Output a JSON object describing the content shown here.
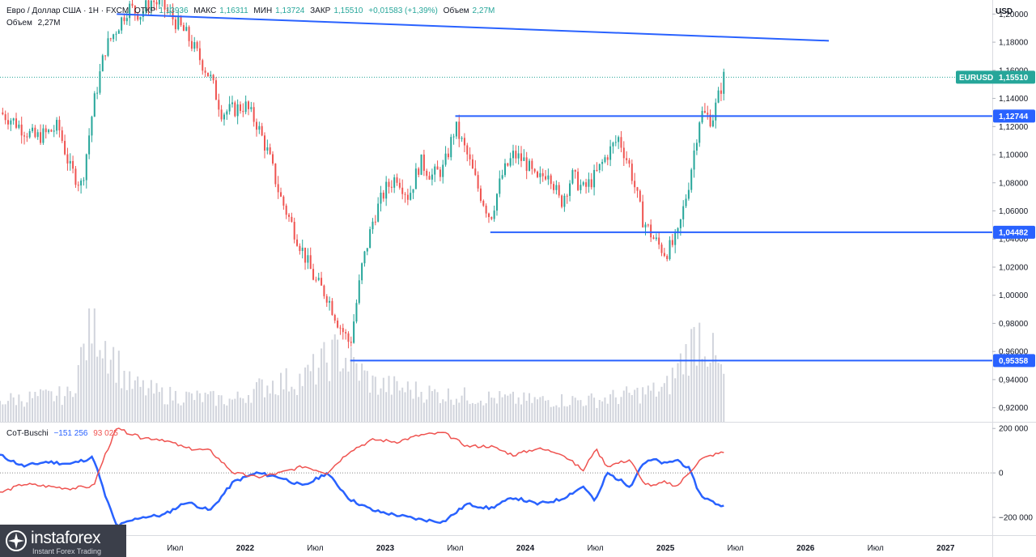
{
  "header": {
    "symbol_title": "Евро / Доллар США · 1Н · FXCM",
    "open_label": "ОТКР",
    "open_value": "1,13936",
    "high_label": "МАКС",
    "high_value": "1,16311",
    "low_label": "МИН",
    "low_value": "1,13724",
    "close_label": "ЗАКР",
    "close_value": "1,15510",
    "change_value": "+0,01583 (+1,39%)",
    "volume_label": "Объем",
    "volume_value": "2,27M"
  },
  "volume_legend": {
    "label": "Объем",
    "value": "2,27M"
  },
  "cot_legend": {
    "title": "CoT-Buschi",
    "value_blue": "−151 256",
    "value_red": "93 025"
  },
  "currency_button": "USD",
  "price_badge": {
    "symbol": "EURUSD",
    "value": "1,15510"
  },
  "levels": [
    {
      "value": 1.12744,
      "label": "1,12744"
    },
    {
      "value": 1.04482,
      "label": "1,04482"
    },
    {
      "value": 0.95358,
      "label": "0,95358"
    }
  ],
  "logo": {
    "brand": "instaforex",
    "tagline": "Instant Forex Trading"
  },
  "colors": {
    "up": "#26a69a",
    "down": "#ef5350",
    "level": "#2962ff",
    "cot_blue": "#2962ff",
    "cot_red": "#ef5350",
    "volume": "#d1d4dc"
  },
  "chart_data": {
    "type": "candlestick",
    "symbol": "EURUSD",
    "timeframe": "1Н",
    "x_range": [
      "2020-04",
      "2027-05"
    ],
    "price_axis": {
      "min": 0.91,
      "max": 1.21,
      "ticks": [
        1.2,
        1.18,
        1.16,
        1.14,
        1.12,
        1.1,
        1.08,
        1.06,
        1.04,
        1.02,
        1.0,
        0.98,
        0.96,
        0.94,
        0.92
      ],
      "tick_labels": [
        "1,20000",
        "1,18000",
        "1,16000",
        "1,14000",
        "1,12000",
        "1,10000",
        "1,08000",
        "1,06000",
        "1,04000",
        "1,02000",
        "1,00000",
        "0,98000",
        "0,96000",
        "0,94000",
        "0,92000"
      ]
    },
    "time_axis": {
      "ticks": [
        {
          "t": "2020-07",
          "label": "Июл"
        },
        {
          "t": "2021-01",
          "label": "2021"
        },
        {
          "t": "2021-07",
          "label": "Июл"
        },
        {
          "t": "2022-01",
          "label": "2022"
        },
        {
          "t": "2022-07",
          "label": "Июл"
        },
        {
          "t": "2023-01",
          "label": "2023"
        },
        {
          "t": "2023-07",
          "label": "Июл"
        },
        {
          "t": "2024-01",
          "label": "2024"
        },
        {
          "t": "2024-07",
          "label": "Июл"
        },
        {
          "t": "2025-01",
          "label": "2025"
        },
        {
          "t": "2025-07",
          "label": "Июл"
        },
        {
          "t": "2026-01",
          "label": "2026"
        },
        {
          "t": "2026-07",
          "label": "Июл"
        },
        {
          "t": "2027-01",
          "label": "2027"
        }
      ]
    },
    "close_path": [
      [
        "2020-04",
        1.13
      ],
      [
        "2020-05",
        1.125
      ],
      [
        "2020-06",
        1.118
      ],
      [
        "2020-07",
        1.112
      ],
      [
        "2020-08",
        1.115
      ],
      [
        "2020-09",
        1.12
      ],
      [
        "2020-10",
        1.09
      ],
      [
        "2020-11",
        1.078
      ],
      [
        "2020-12",
        1.135
      ],
      [
        "2021-01",
        1.175
      ],
      [
        "2021-02",
        1.19
      ],
      [
        "2021-03",
        1.205
      ],
      [
        "2021-04",
        1.2
      ],
      [
        "2021-05",
        1.21
      ],
      [
        "2021-06",
        1.205
      ],
      [
        "2021-07",
        1.195
      ],
      [
        "2021-08",
        1.185
      ],
      [
        "2021-09",
        1.17
      ],
      [
        "2021-10",
        1.155
      ],
      [
        "2021-11",
        1.13
      ],
      [
        "2021-12",
        1.132
      ],
      [
        "2022-01",
        1.135
      ],
      [
        "2022-02",
        1.122
      ],
      [
        "2022-03",
        1.1
      ],
      [
        "2022-04",
        1.07
      ],
      [
        "2022-05",
        1.05
      ],
      [
        "2022-06",
        1.03
      ],
      [
        "2022-07",
        1.01
      ],
      [
        "2022-08",
        1.0
      ],
      [
        "2022-09",
        0.98
      ],
      [
        "2022-10",
        0.965
      ],
      [
        "2022-11",
        1.02
      ],
      [
        "2022-12",
        1.055
      ],
      [
        "2023-01",
        1.075
      ],
      [
        "2023-02",
        1.085
      ],
      [
        "2023-03",
        1.07
      ],
      [
        "2023-04",
        1.095
      ],
      [
        "2023-05",
        1.085
      ],
      [
        "2023-06",
        1.09
      ],
      [
        "2023-07",
        1.12
      ],
      [
        "2023-08",
        1.1
      ],
      [
        "2023-09",
        1.075
      ],
      [
        "2023-10",
        1.055
      ],
      [
        "2023-11",
        1.085
      ],
      [
        "2023-12",
        1.1
      ],
      [
        "2024-01",
        1.095
      ],
      [
        "2024-02",
        1.08
      ],
      [
        "2024-03",
        1.09
      ],
      [
        "2024-04",
        1.065
      ],
      [
        "2024-05",
        1.085
      ],
      [
        "2024-06",
        1.075
      ],
      [
        "2024-07",
        1.085
      ],
      [
        "2024-08",
        1.1
      ],
      [
        "2024-09",
        1.112
      ],
      [
        "2024-10",
        1.09
      ],
      [
        "2024-11",
        1.055
      ],
      [
        "2024-12",
        1.04
      ],
      [
        "2025-01",
        1.03
      ],
      [
        "2025-02",
        1.04
      ],
      [
        "2025-03",
        1.08
      ],
      [
        "2025-04",
        1.13
      ],
      [
        "2025-05",
        1.125
      ],
      [
        "2025-06",
        1.155
      ]
    ],
    "volume_path": [
      [
        "2020-04",
        0.2
      ],
      [
        "2020-10",
        0.25
      ],
      [
        "2020-12",
        0.95
      ],
      [
        "2021-03",
        0.35
      ],
      [
        "2021-06",
        0.25
      ],
      [
        "2021-12",
        0.2
      ],
      [
        "2022-03",
        0.35
      ],
      [
        "2022-06",
        0.4
      ],
      [
        "2022-09",
        0.65
      ],
      [
        "2022-12",
        0.35
      ],
      [
        "2023-06",
        0.25
      ],
      [
        "2024-01",
        0.2
      ],
      [
        "2024-07",
        0.2
      ],
      [
        "2025-01",
        0.3
      ],
      [
        "2025-04",
        0.85
      ],
      [
        "2025-06",
        0.4
      ]
    ],
    "trendline": {
      "from": [
        "2021-02",
        1.2
      ],
      "to": [
        "2026-03",
        1.181
      ]
    },
    "last_price": 1.1551,
    "cot": {
      "axis": {
        "ticks": [
          200000,
          0,
          -200000
        ],
        "tick_labels": [
          "200 000",
          "0",
          "−200 000"
        ],
        "min": -280000,
        "max": 230000
      },
      "series": [
        {
          "name": "",
          "color": "#2962ff",
          "points": [
            [
              "2020-04",
              80000
            ],
            [
              "2020-06",
              30000
            ],
            [
              "2020-08",
              50000
            ],
            [
              "2020-10",
              40000
            ],
            [
              "2020-12",
              70000
            ],
            [
              "2021-01",
              -100000
            ],
            [
              "2021-02",
              -240000
            ],
            [
              "2021-04",
              -200000
            ],
            [
              "2021-06",
              -190000
            ],
            [
              "2021-08",
              -130000
            ],
            [
              "2021-10",
              -170000
            ],
            [
              "2021-12",
              -40000
            ],
            [
              "2022-02",
              0
            ],
            [
              "2022-04",
              -20000
            ],
            [
              "2022-06",
              -60000
            ],
            [
              "2022-08",
              0
            ],
            [
              "2022-10",
              -120000
            ],
            [
              "2022-12",
              -170000
            ],
            [
              "2023-02",
              -190000
            ],
            [
              "2023-04",
              -210000
            ],
            [
              "2023-06",
              -220000
            ],
            [
              "2023-08",
              -140000
            ],
            [
              "2023-10",
              -160000
            ],
            [
              "2023-12",
              -110000
            ],
            [
              "2024-02",
              -140000
            ],
            [
              "2024-04",
              -120000
            ],
            [
              "2024-06",
              -60000
            ],
            [
              "2024-07",
              -130000
            ],
            [
              "2024-08",
              0
            ],
            [
              "2024-10",
              -60000
            ],
            [
              "2024-11",
              40000
            ],
            [
              "2024-12",
              60000
            ],
            [
              "2025-01",
              40000
            ],
            [
              "2025-02",
              60000
            ],
            [
              "2025-03",
              20000
            ],
            [
              "2025-04",
              -100000
            ],
            [
              "2025-05",
              -130000
            ],
            [
              "2025-06",
              -151256
            ]
          ]
        },
        {
          "name": "",
          "color": "#ef5350",
          "points": [
            [
              "2020-04",
              -90000
            ],
            [
              "2020-06",
              -50000
            ],
            [
              "2020-08",
              -60000
            ],
            [
              "2020-10",
              -70000
            ],
            [
              "2020-12",
              -60000
            ],
            [
              "2021-01",
              80000
            ],
            [
              "2021-02",
              200000
            ],
            [
              "2021-04",
              160000
            ],
            [
              "2021-06",
              150000
            ],
            [
              "2021-08",
              110000
            ],
            [
              "2021-10",
              100000
            ],
            [
              "2021-12",
              0
            ],
            [
              "2022-02",
              -20000
            ],
            [
              "2022-04",
              0
            ],
            [
              "2022-06",
              30000
            ],
            [
              "2022-08",
              0
            ],
            [
              "2022-10",
              100000
            ],
            [
              "2022-12",
              150000
            ],
            [
              "2023-02",
              140000
            ],
            [
              "2023-04",
              170000
            ],
            [
              "2023-06",
              180000
            ],
            [
              "2023-08",
              120000
            ],
            [
              "2023-10",
              120000
            ],
            [
              "2023-12",
              80000
            ],
            [
              "2024-02",
              110000
            ],
            [
              "2024-04",
              90000
            ],
            [
              "2024-06",
              10000
            ],
            [
              "2024-07",
              110000
            ],
            [
              "2024-08",
              30000
            ],
            [
              "2024-10",
              60000
            ],
            [
              "2024-11",
              -40000
            ],
            [
              "2024-12",
              -60000
            ],
            [
              "2025-01",
              -40000
            ],
            [
              "2025-02",
              -60000
            ],
            [
              "2025-03",
              0
            ],
            [
              "2025-04",
              60000
            ],
            [
              "2025-05",
              80000
            ],
            [
              "2025-06",
              93025
            ]
          ]
        }
      ]
    }
  }
}
